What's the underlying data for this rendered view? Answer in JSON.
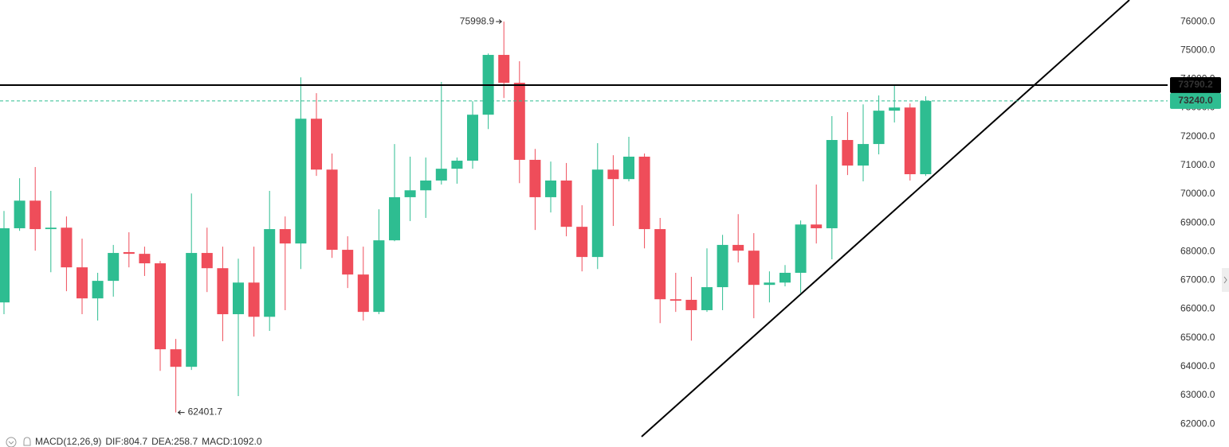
{
  "chart_data": {
    "type": "candlestick",
    "open": [
      66230,
      68810,
      69770,
      68780,
      68830,
      67450,
      66370,
      66980,
      67980,
      67920,
      67590,
      64600,
      63990,
      67950,
      67420,
      65820,
      66920,
      65730,
      68780,
      68280,
      72620,
      70850,
      68060,
      67200,
      65900,
      68390,
      69890,
      70130,
      70470,
      70880,
      71160,
      72760,
      74840,
      73870,
      71190,
      69890,
      70470,
      68860,
      67810,
      70850,
      70520,
      71300,
      68780,
      66340,
      66320,
      65960,
      66760,
      68230,
      68030,
      66840,
      66920,
      67260,
      68940,
      68810,
      71880,
      70990,
      71740,
      72900,
      73010,
      70690
    ],
    "high": [
      69410,
      70550,
      70940,
      70110,
      69220,
      68450,
      67260,
      68230,
      68670,
      68170,
      67670,
      64960,
      70020,
      68830,
      68170,
      67750,
      68170,
      70110,
      69220,
      74060,
      73510,
      71410,
      68530,
      68170,
      69470,
      71740,
      71300,
      71270,
      73900,
      71270,
      73230,
      74890,
      75998.9,
      74620,
      71570,
      71130,
      71080,
      69610,
      71770,
      71350,
      71990,
      71410,
      69170,
      67260,
      67120,
      68110,
      68580,
      69300,
      68640,
      67310,
      67530,
      69080,
      70330,
      72710,
      72850,
      73120,
      73430,
      73760,
      73150,
      73400
    ],
    "low": [
      65820,
      68720,
      68030,
      67280,
      66620,
      65820,
      65600,
      66430,
      67450,
      67150,
      63850,
      62401.7,
      63880,
      66590,
      64880,
      62970,
      65040,
      65240,
      65960,
      67390,
      70630,
      67780,
      66730,
      65600,
      65820,
      68360,
      69060,
      69170,
      70330,
      70360,
      70880,
      72260,
      73340,
      70380,
      68750,
      69360,
      68530,
      67310,
      67390,
      68890,
      70440,
      68110,
      65510,
      65900,
      64900,
      65900,
      65960,
      67620,
      65680,
      66230,
      66790,
      66560,
      68280,
      67730,
      70660,
      70440,
      71380,
      72490,
      70470,
      70630
    ],
    "close": [
      68810,
      69770,
      68780,
      68830,
      67450,
      66370,
      66980,
      67950,
      67920,
      67590,
      64600,
      63990,
      67950,
      67420,
      65820,
      66920,
      65730,
      68780,
      68280,
      72620,
      70850,
      68060,
      67200,
      65900,
      68390,
      69890,
      70130,
      70470,
      70880,
      71160,
      72760,
      74840,
      73870,
      71190,
      69890,
      70470,
      68860,
      67810,
      70850,
      70520,
      71300,
      68780,
      66340,
      66290,
      65960,
      66760,
      68230,
      68030,
      66840,
      66920,
      67260,
      68940,
      68810,
      71880,
      70990,
      71740,
      72900,
      73010,
      70690,
      73240
    ],
    "up_color": "#2ebd91",
    "down_color": "#ef4d5a",
    "ylim": [
      61200,
      76750
    ],
    "yticks": [
      {
        "value": 62000,
        "label": "62000.0"
      },
      {
        "value": 63000,
        "label": "63000.0"
      },
      {
        "value": 64000,
        "label": "64000.0"
      },
      {
        "value": 65000,
        "label": "65000.0"
      },
      {
        "value": 66000,
        "label": "66000.0"
      },
      {
        "value": 67000,
        "label": "67000.0"
      },
      {
        "value": 68000,
        "label": "68000.0"
      },
      {
        "value": 69000,
        "label": "69000.0"
      },
      {
        "value": 70000,
        "label": "70000.0"
      },
      {
        "value": 71000,
        "label": "71000.0"
      },
      {
        "value": 72000,
        "label": "72000.0"
      },
      {
        "value": 73000,
        "label": "73000.0"
      },
      {
        "value": 74000,
        "label": "74000.0"
      },
      {
        "value": 75000,
        "label": "75000.0"
      },
      {
        "value": 76000,
        "label": "76000.0"
      }
    ],
    "hlines": [
      {
        "value": 73790.2,
        "label": "73790.2",
        "color": "#000000",
        "style": "solid"
      },
      {
        "value": 73240,
        "label": "73240.0",
        "color": "#2ebd91",
        "style": "dashed"
      }
    ],
    "indicator": [
      {
        "text": "MACD(12,26,9)",
        "color": "#666666"
      },
      {
        "text": "DIF:804.7",
        "color": "#22b5a0"
      },
      {
        "text": "DEA:258.7",
        "color": "#f0a500"
      },
      {
        "text": "MACD:1092.0",
        "color": "#2ebd91"
      }
    ]
  }
}
